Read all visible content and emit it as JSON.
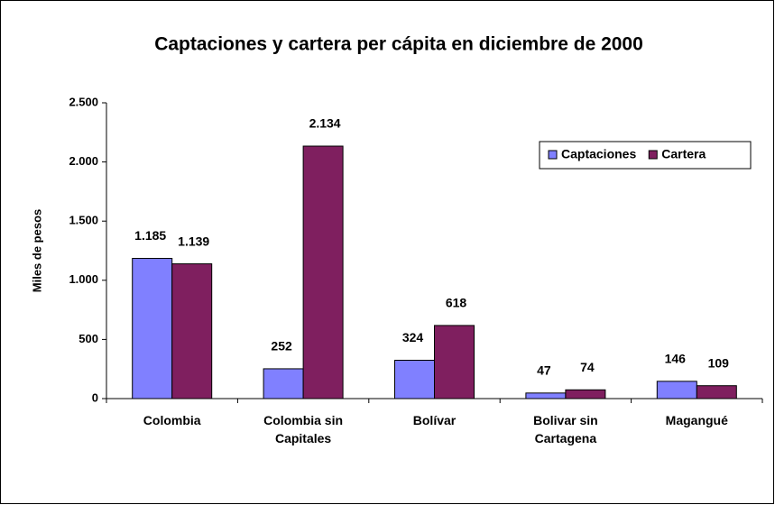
{
  "chart_data": {
    "type": "bar",
    "title": "Captaciones y cartera per cápita en diciembre de 2000",
    "y_label": "Miles de pesos",
    "categories": [
      "Colombia",
      "Colombia sin Capitales",
      "Bolívar",
      "Bolivar sin Cartagena",
      "Magangué"
    ],
    "series": [
      {
        "name": "Captaciones",
        "color": "#8080ff",
        "values": [
          1185,
          252,
          324,
          47,
          146
        ],
        "value_labels": [
          "1.185",
          "252",
          "324",
          "47",
          "146"
        ]
      },
      {
        "name": "Cartera",
        "color": "#7f1f5f",
        "values": [
          1139,
          2134,
          618,
          74,
          109
        ],
        "value_labels": [
          "1.139",
          "2.134",
          "618",
          "74",
          "109"
        ]
      }
    ],
    "ylim": [
      0,
      2500
    ],
    "yticks": [
      0,
      500,
      {
        "value": 1000,
        "label": "1.000"
      },
      {
        "value": 1500,
        "label": "1.500"
      },
      {
        "value": 2000,
        "label": "2.000"
      },
      {
        "value": 2500,
        "label": "2.500"
      }
    ],
    "legend": "upper right"
  }
}
